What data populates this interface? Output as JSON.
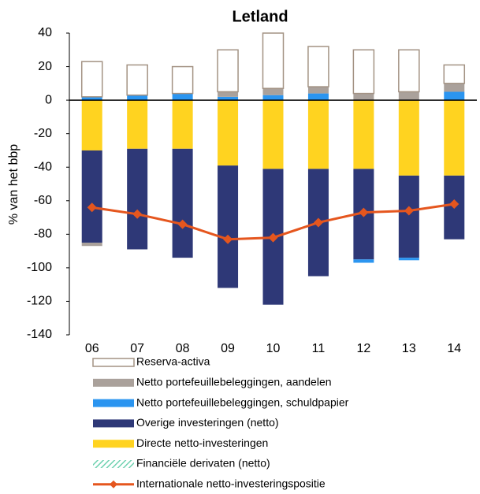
{
  "chart_data": {
    "type": "bar",
    "title": "Letland",
    "y_label": "% van het bbp",
    "categories": [
      "06",
      "07",
      "08",
      "09",
      "10",
      "11",
      "12",
      "13",
      "14"
    ],
    "ylim": [
      -140,
      40
    ],
    "yticks": [
      -140,
      -120,
      -100,
      -80,
      -60,
      -40,
      -20,
      0,
      20,
      40
    ],
    "series": [
      {
        "name": "Reserva-activa",
        "color": "#a39283",
        "outline": true,
        "values": [
          21,
          18,
          16,
          25,
          33,
          24,
          26,
          25,
          11
        ]
      },
      {
        "name": "Netto portefeuillebeleggingen, aandelen",
        "color": "#aaa19b",
        "values": [
          -2,
          0,
          0,
          3,
          4,
          4,
          4,
          5,
          5
        ]
      },
      {
        "name": "Netto portefeuillebeleggingen, schuldpapier",
        "color": "#2b95f0",
        "values": [
          2,
          3,
          4,
          2,
          3,
          4,
          -2,
          -1.5,
          5
        ]
      },
      {
        "name": "Overige investeringen (netto)",
        "color": "#2e3877",
        "values": [
          -55,
          -60,
          -65,
          -73,
          -81,
          -64,
          -54,
          -49,
          -38
        ]
      },
      {
        "name": "Directe netto-investeringen",
        "color": "#ffd320",
        "values": [
          -30,
          -29,
          -29,
          -39,
          -41,
          -41,
          -41,
          -45,
          -45
        ]
      },
      {
        "name": "Financiële derivaten (netto)",
        "color": "#6fd1b0",
        "hatch": true,
        "values": [
          0,
          0,
          0,
          0,
          0,
          0,
          0,
          0,
          0
        ]
      },
      {
        "name": "Internationale netto-investeringspositie",
        "color": "#e5561e",
        "type": "line",
        "values": [
          -64,
          -68,
          -74,
          -83,
          -82,
          -73,
          -67,
          -66,
          -62
        ]
      }
    ]
  }
}
